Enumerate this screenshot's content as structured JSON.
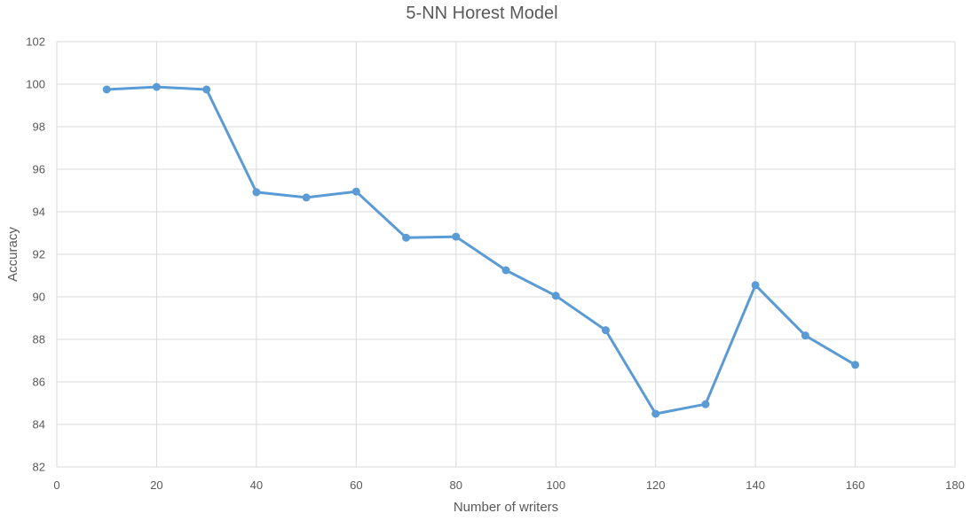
{
  "chart_data": {
    "type": "line",
    "title": "5-NN Horest Model",
    "xlabel": "Number of writers",
    "ylabel": "Accuracy",
    "xlim": [
      0,
      180
    ],
    "ylim": [
      82,
      102
    ],
    "x_ticks": [
      0,
      20,
      40,
      60,
      80,
      100,
      120,
      140,
      160,
      180
    ],
    "y_ticks": [
      82,
      84,
      86,
      88,
      90,
      92,
      94,
      96,
      98,
      100,
      102
    ],
    "grid": true,
    "legend": "none",
    "series": [
      {
        "color": "#5b9bd5",
        "x": [
          10,
          20,
          30,
          40,
          50,
          60,
          70,
          80,
          90,
          100,
          110,
          120,
          130,
          140,
          150,
          160
        ],
        "y": [
          99.75,
          99.87,
          99.75,
          94.92,
          94.67,
          94.95,
          92.78,
          92.83,
          91.25,
          90.05,
          88.43,
          84.5,
          84.95,
          90.55,
          88.18,
          86.8
        ]
      }
    ]
  }
}
